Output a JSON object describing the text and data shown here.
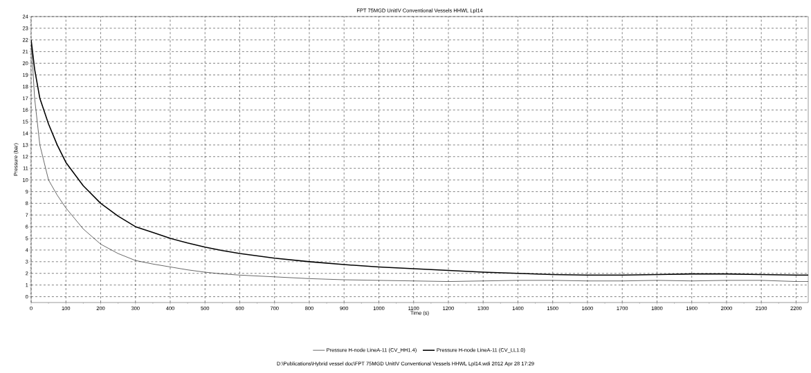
{
  "chart_data": {
    "type": "line",
    "title": "FPT 75MGD UnitIV Conventional Vessels HHWL Lpl14",
    "xlabel": "Time (s)",
    "ylabel": "Pressure (bar)",
    "x": [
      0,
      10,
      25,
      50,
      75,
      100,
      150,
      200,
      250,
      300,
      350,
      400,
      450,
      500,
      550,
      600,
      700,
      800,
      900,
      1000,
      1100,
      1200,
      1300,
      1400,
      1500,
      1600,
      1700,
      1800,
      1900,
      2000,
      2100,
      2200,
      2235
    ],
    "series": [
      {
        "name": "Pressure H-node LineA-11 (CV_HH1.4)",
        "color": "#000000",
        "values": [
          22,
          17,
          13,
          10,
          8.7,
          7.6,
          5.8,
          4.5,
          3.7,
          3.1,
          2.8,
          2.55,
          2.3,
          2.1,
          1.95,
          1.85,
          1.7,
          1.55,
          1.45,
          1.4,
          1.35,
          1.3,
          1.35,
          1.4,
          1.4,
          1.35,
          1.35,
          1.4,
          1.35,
          1.4,
          1.4,
          1.3,
          1.3
        ]
      },
      {
        "name": "Pressure H-node LineA-11 (CV_LL1.0)",
        "color": "#000000",
        "values": [
          22,
          19.5,
          17,
          14.8,
          13,
          11.5,
          9.5,
          8,
          6.9,
          6,
          5.5,
          5,
          4.6,
          4.25,
          3.95,
          3.7,
          3.3,
          3.0,
          2.75,
          2.55,
          2.4,
          2.25,
          2.1,
          2.0,
          1.9,
          1.85,
          1.85,
          1.9,
          1.95,
          1.95,
          1.9,
          1.85,
          1.85
        ]
      }
    ],
    "xlim": [
      0,
      2235
    ],
    "ylim": [
      -0.5,
      24
    ],
    "xticks": [
      0,
      100,
      200,
      300,
      400,
      500,
      600,
      700,
      800,
      900,
      1000,
      1100,
      1200,
      1300,
      1400,
      1500,
      1600,
      1700,
      1800,
      1900,
      2000,
      2100,
      2200
    ],
    "yticks": [
      0,
      1,
      2,
      3,
      4,
      5,
      6,
      7,
      8,
      9,
      10,
      11,
      12,
      13,
      14,
      15,
      16,
      17,
      18,
      19,
      20,
      21,
      22,
      23,
      24
    ],
    "grid": true,
    "legend": "bottom",
    "line_style": "solid",
    "marker": "none",
    "annotations": [
      "D:\\Publications\\Hybrid vessel doc\\FPT 75MGD UnitIV Conventional Vessels HHWL Lpl14.wdi  2012 Apr 28  17:29"
    ]
  }
}
